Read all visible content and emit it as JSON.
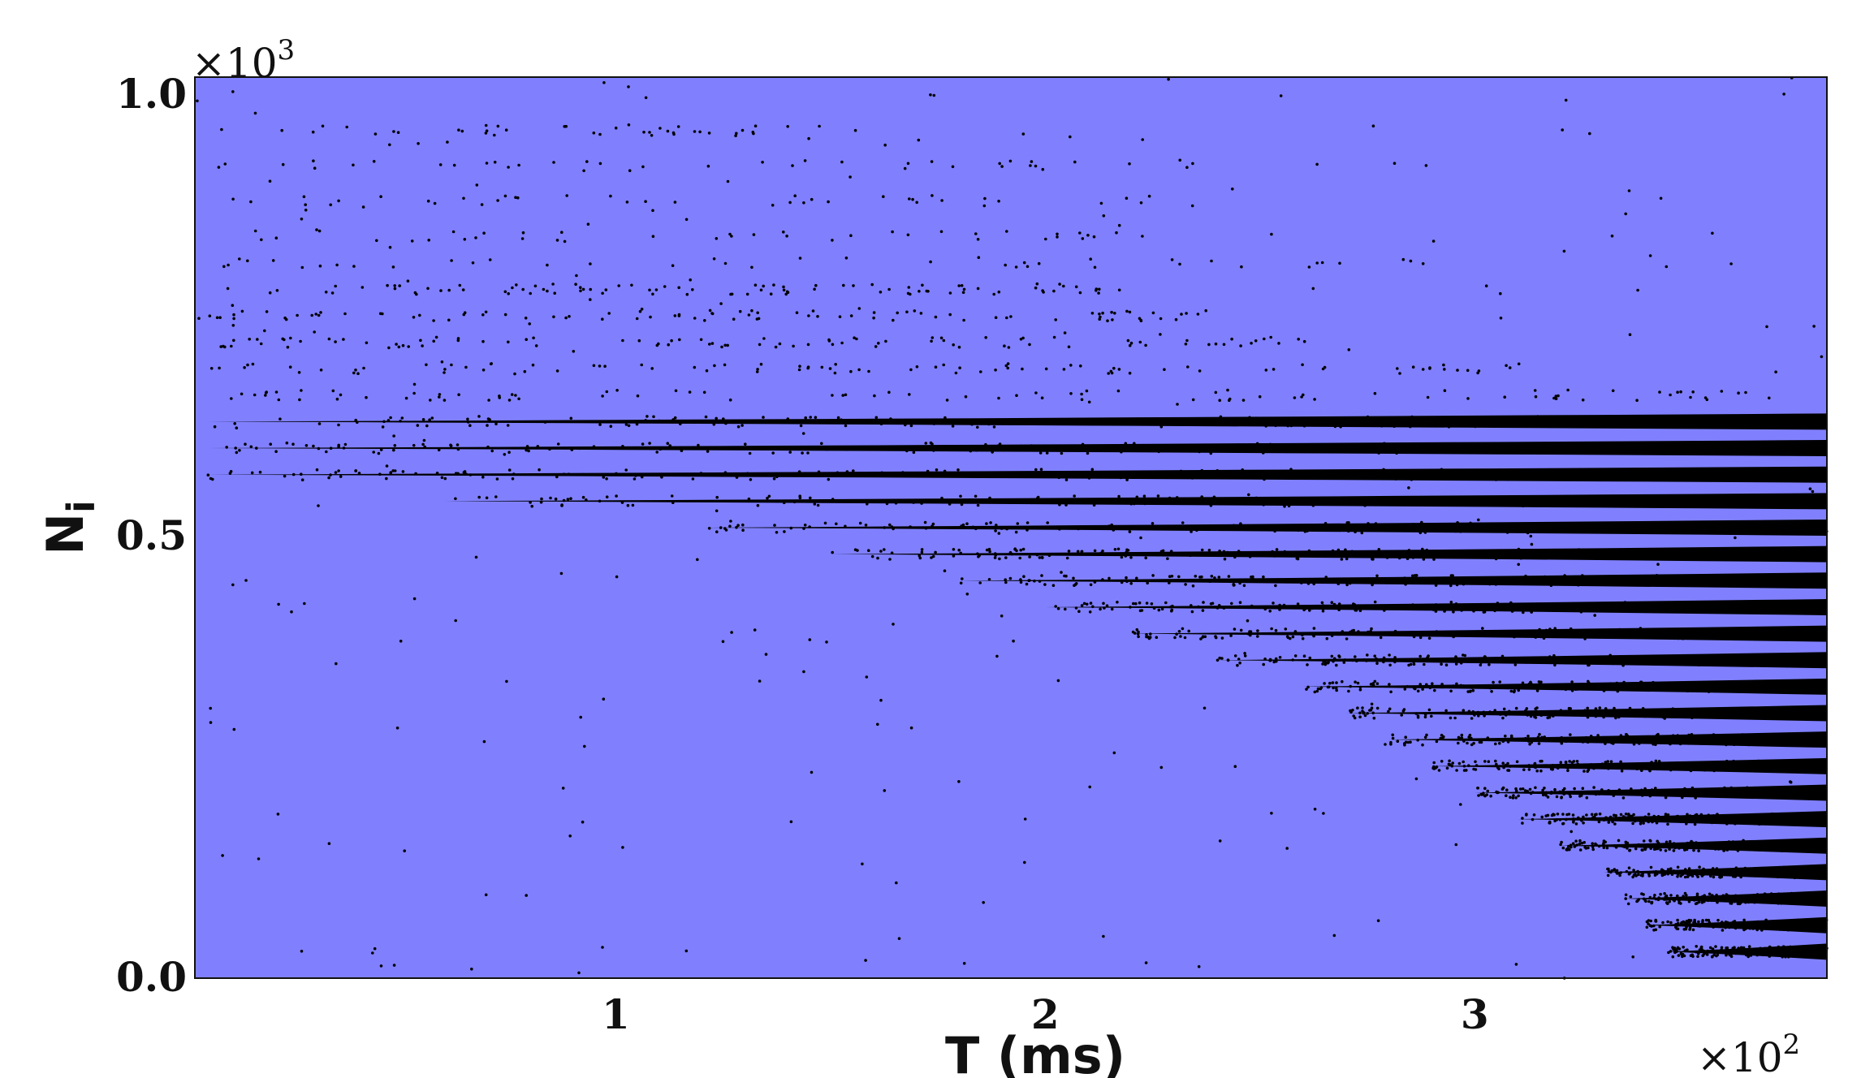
{
  "chart_data": {
    "type": "scatter",
    "title": "",
    "xlabel": "T (ms)",
    "ylabel_base": "N",
    "ylabel_sub": "i",
    "x_multiplier": {
      "base": "×10",
      "exp": "2"
    },
    "y_multiplier": {
      "base": "×10",
      "exp": "3"
    },
    "xlim": [
      0.02,
      3.82
    ],
    "ylim": [
      0.0,
      1.02
    ],
    "x_ticks": [
      {
        "value": 1,
        "label": "1"
      },
      {
        "value": 2,
        "label": "2"
      },
      {
        "value": 3,
        "label": "3"
      }
    ],
    "y_ticks": [
      {
        "value": 0.0,
        "label": "0.0"
      },
      {
        "value": 0.5,
        "label": "0.5"
      },
      {
        "value": 1.0,
        "label": "1.0"
      }
    ],
    "grid": false,
    "legend": "none",
    "background_color": "#8080ff",
    "point_color": "#000000",
    "series": [
      {
        "description_points": "raster of spike events (neuron index vs time)",
        "bands": [
          {
            "y": 0.96,
            "t_start": 0.05,
            "t_end": 1.6,
            "density": "sparse"
          },
          {
            "y": 0.92,
            "t_start": 0.05,
            "t_end": 2.9,
            "density": "sparse"
          },
          {
            "y": 0.88,
            "t_start": 0.05,
            "t_end": 2.4,
            "density": "sparse"
          },
          {
            "y": 0.84,
            "t_start": 0.05,
            "t_end": 2.6,
            "density": "sparse"
          },
          {
            "y": 0.81,
            "t_start": 0.05,
            "t_end": 2.9,
            "density": "sparse"
          },
          {
            "y": 0.78,
            "t_start": 0.2,
            "t_end": 2.2,
            "density": "medium"
          },
          {
            "y": 0.75,
            "t_start": 0.05,
            "t_end": 2.4,
            "density": "medium"
          },
          {
            "y": 0.72,
            "t_start": 0.05,
            "t_end": 2.6,
            "density": "medium"
          },
          {
            "y": 0.69,
            "t_start": 0.05,
            "t_end": 3.2,
            "density": "medium"
          },
          {
            "y": 0.66,
            "t_start": 0.05,
            "t_end": 3.82,
            "density": "medium"
          },
          {
            "y": 0.63,
            "t_start": 0.05,
            "t_end": 3.82,
            "density": "dense"
          },
          {
            "y": 0.6,
            "t_start": 0.05,
            "t_end": 3.82,
            "density": "dense"
          },
          {
            "y": 0.57,
            "t_start": 0.05,
            "t_end": 3.82,
            "density": "dense"
          },
          {
            "y": 0.54,
            "t_start": 0.6,
            "t_end": 3.82,
            "density": "dense"
          },
          {
            "y": 0.51,
            "t_start": 1.2,
            "t_end": 3.82,
            "density": "dense"
          },
          {
            "y": 0.48,
            "t_start": 1.5,
            "t_end": 3.82,
            "density": "dense"
          },
          {
            "y": 0.45,
            "t_start": 1.8,
            "t_end": 3.82,
            "density": "dense"
          },
          {
            "y": 0.42,
            "t_start": 2.0,
            "t_end": 3.82,
            "density": "dense"
          },
          {
            "y": 0.39,
            "t_start": 2.2,
            "t_end": 3.82,
            "density": "dense"
          },
          {
            "y": 0.36,
            "t_start": 2.4,
            "t_end": 3.82,
            "density": "dense"
          },
          {
            "y": 0.33,
            "t_start": 2.6,
            "t_end": 3.82,
            "density": "dense"
          },
          {
            "y": 0.3,
            "t_start": 2.7,
            "t_end": 3.82,
            "density": "dense"
          },
          {
            "y": 0.27,
            "t_start": 2.8,
            "t_end": 3.82,
            "density": "dense"
          },
          {
            "y": 0.24,
            "t_start": 2.9,
            "t_end": 3.82,
            "density": "dense"
          },
          {
            "y": 0.21,
            "t_start": 3.0,
            "t_end": 3.82,
            "density": "dense"
          },
          {
            "y": 0.18,
            "t_start": 3.1,
            "t_end": 3.82,
            "density": "dense"
          },
          {
            "y": 0.15,
            "t_start": 3.2,
            "t_end": 3.82,
            "density": "dense"
          },
          {
            "y": 0.12,
            "t_start": 3.3,
            "t_end": 3.82,
            "density": "dense"
          },
          {
            "y": 0.09,
            "t_start": 3.35,
            "t_end": 3.82,
            "density": "dense"
          },
          {
            "y": 0.06,
            "t_start": 3.4,
            "t_end": 3.82,
            "density": "dense"
          },
          {
            "y": 0.03,
            "t_start": 3.45,
            "t_end": 3.82,
            "density": "dense"
          }
        ]
      }
    ]
  }
}
